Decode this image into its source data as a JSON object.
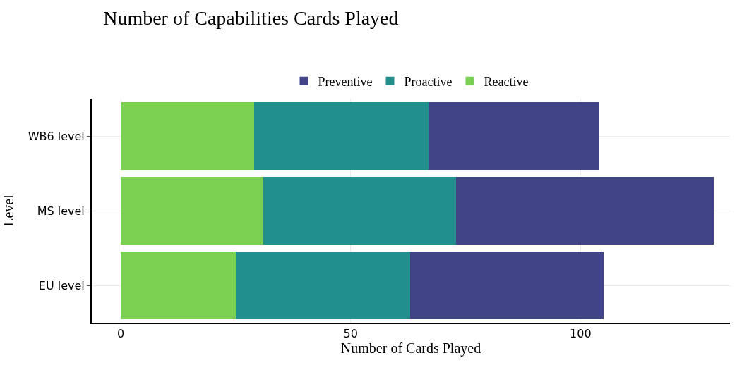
{
  "chart_data": {
    "type": "bar",
    "orientation": "horizontal",
    "stacked": true,
    "title": "Number of Capabilities Cards Played",
    "xlabel": "Number of Cards Played",
    "ylabel": "Level",
    "categories": [
      "WB6 level",
      "MS level",
      "EU level"
    ],
    "series": [
      {
        "name": "Reactive",
        "color": "#7ad151",
        "values": [
          29,
          31,
          25
        ]
      },
      {
        "name": "Proactive",
        "color": "#21908c",
        "values": [
          38,
          42,
          38
        ]
      },
      {
        "name": "Preventive",
        "color": "#414487",
        "values": [
          37,
          56,
          42
        ]
      }
    ],
    "xlim": [
      -6.3,
      132.5
    ],
    "xticks": [
      0,
      50,
      100
    ],
    "grid": true,
    "legend": "top"
  }
}
